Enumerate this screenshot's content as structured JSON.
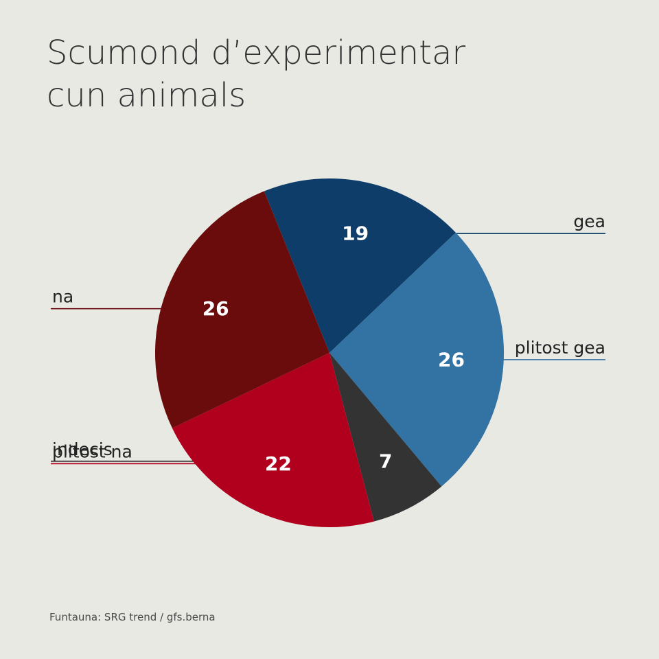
{
  "title": {
    "line1": "Scumond d’experimentar",
    "line2": "cun animals"
  },
  "source": "Funtauna: SRG trend / gfs.berna",
  "chart_data": {
    "type": "pie",
    "start_angle_deg": -22,
    "direction": "clockwise",
    "slices": [
      {
        "label": "gea",
        "value": 19,
        "color": "#0d3d68",
        "side": "right"
      },
      {
        "label": "plitost gea",
        "value": 26,
        "color": "#3373a3",
        "side": "right"
      },
      {
        "label": "indecis",
        "value": 7,
        "color": "#333333",
        "side": "left"
      },
      {
        "label": "plitost na",
        "value": 22,
        "color": "#b0001e",
        "side": "left"
      },
      {
        "label": "na",
        "value": 26,
        "color": "#6b0c0c",
        "side": "left"
      }
    ]
  }
}
